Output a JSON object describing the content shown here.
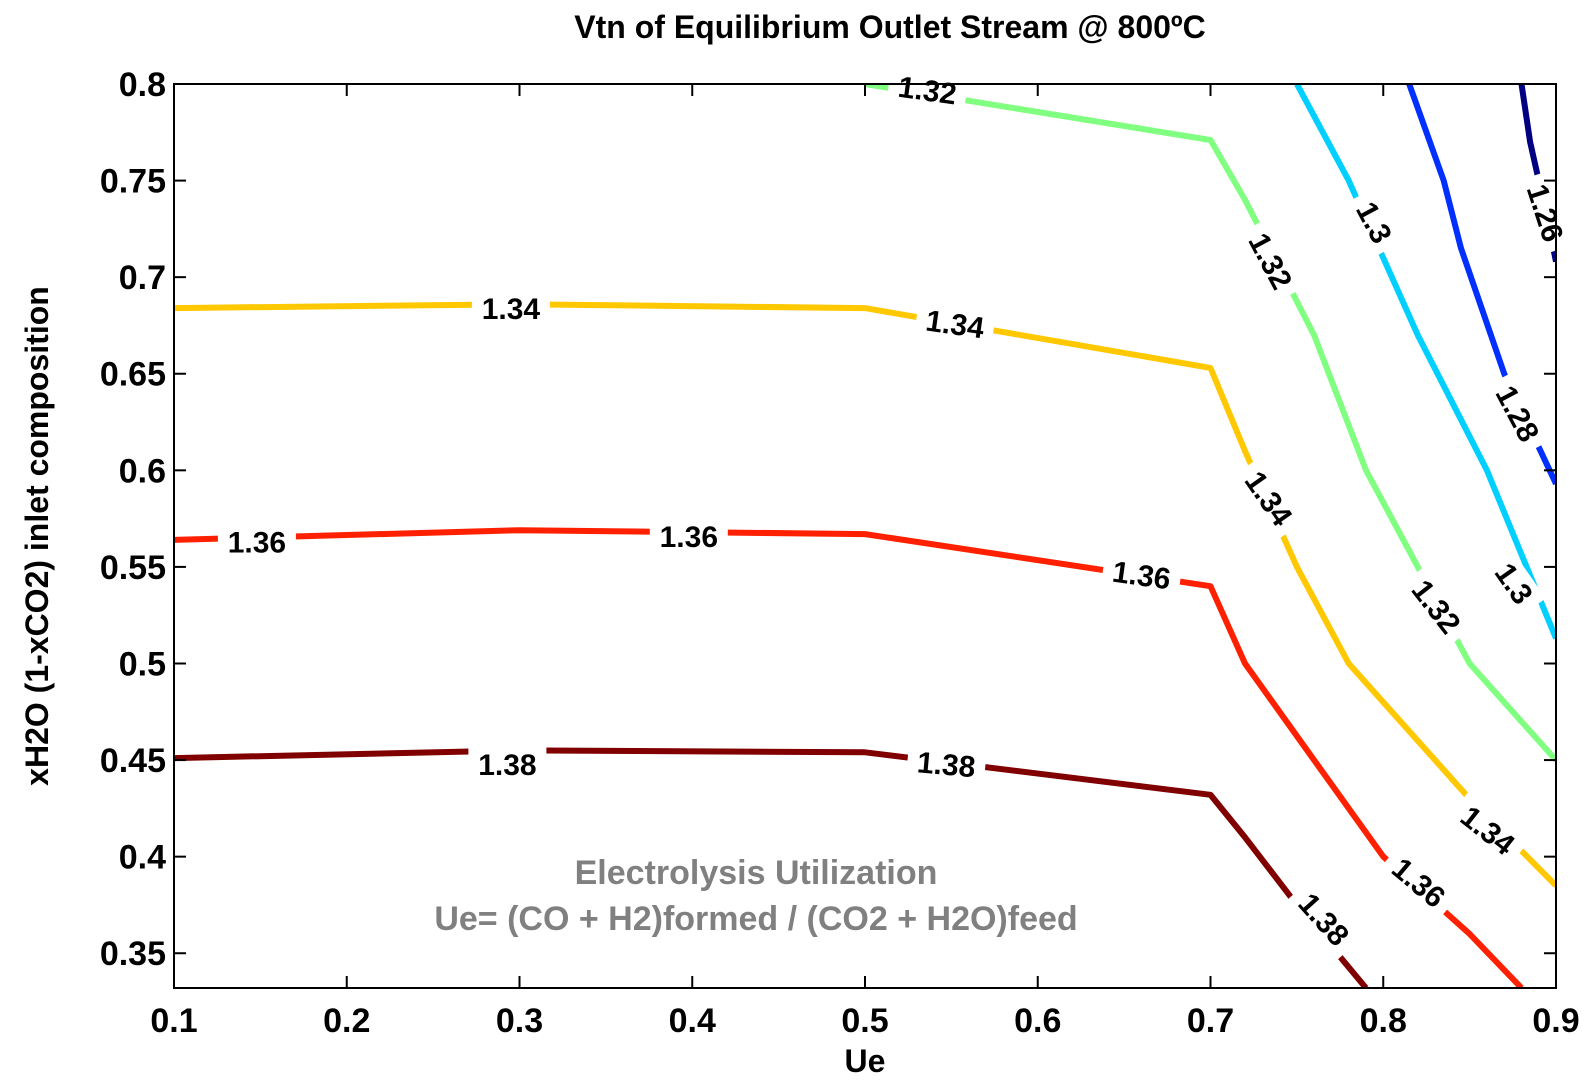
{
  "chart_data": {
    "type": "contour",
    "title": "Vtn of Equilibrium Outlet Stream @ 800ºC",
    "xlabel": "Ue",
    "ylabel": "xH2O (1-xCO2) inlet composition",
    "xlim": [
      0.1,
      0.9
    ],
    "ylim": [
      0.332,
      0.8
    ],
    "x_ticks": [
      "0.1",
      "0.2",
      "0.3",
      "0.4",
      "0.5",
      "0.6",
      "0.7",
      "0.8",
      "0.9"
    ],
    "y_ticks": [
      "0.35",
      "0.4",
      "0.45",
      "0.5",
      "0.55",
      "0.6",
      "0.65",
      "0.7",
      "0.75",
      "0.8"
    ],
    "annotation": [
      "Electrolysis Utilization",
      "Ue= (CO + H2)formed / (CO2 + H2O)feed"
    ],
    "grid": false,
    "series": [
      {
        "level": 1.38,
        "color": "#800000",
        "points": [
          [
            0.1,
            0.451
          ],
          [
            0.3,
            0.455
          ],
          [
            0.5,
            0.454
          ],
          [
            0.7,
            0.432
          ],
          [
            0.72,
            0.41
          ],
          [
            0.75,
            0.375
          ],
          [
            0.79,
            0.332
          ]
        ],
        "labels": [
          {
            "text": "1.38",
            "x": 0.293,
            "y": 0.447,
            "angle": 0
          },
          {
            "text": "1.38",
            "x": 0.547,
            "y": 0.447,
            "angle": 5
          },
          {
            "text": "1.38",
            "x": 0.765,
            "y": 0.367,
            "angle": 48
          }
        ]
      },
      {
        "level": 1.36,
        "color": "#ff2000",
        "points": [
          [
            0.1,
            0.564
          ],
          [
            0.3,
            0.569
          ],
          [
            0.5,
            0.567
          ],
          [
            0.7,
            0.54
          ],
          [
            0.72,
            0.5
          ],
          [
            0.76,
            0.45
          ],
          [
            0.8,
            0.4
          ],
          [
            0.85,
            0.36
          ],
          [
            0.88,
            0.332
          ]
        ],
        "labels": [
          {
            "text": "1.36",
            "x": 0.148,
            "y": 0.562,
            "angle": 0
          },
          {
            "text": "1.36",
            "x": 0.398,
            "y": 0.565,
            "angle": 0
          },
          {
            "text": "1.36",
            "x": 0.66,
            "y": 0.545,
            "angle": 8
          },
          {
            "text": "1.36",
            "x": 0.82,
            "y": 0.386,
            "angle": 40
          }
        ]
      },
      {
        "level": 1.34,
        "color": "#ffc800",
        "points": [
          [
            0.1,
            0.684
          ],
          [
            0.3,
            0.686
          ],
          [
            0.5,
            0.684
          ],
          [
            0.7,
            0.653
          ],
          [
            0.72,
            0.61
          ],
          [
            0.75,
            0.55
          ],
          [
            0.78,
            0.5
          ],
          [
            0.85,
            0.43
          ],
          [
            0.9,
            0.385
          ]
        ],
        "labels": [
          {
            "text": "1.34",
            "x": 0.295,
            "y": 0.683,
            "angle": 0
          },
          {
            "text": "1.34",
            "x": 0.552,
            "y": 0.675,
            "angle": 8
          },
          {
            "text": "1.34",
            "x": 0.733,
            "y": 0.585,
            "angle": 55
          },
          {
            "text": "1.34",
            "x": 0.86,
            "y": 0.413,
            "angle": 38
          }
        ]
      },
      {
        "level": 1.32,
        "color": "#80ff80",
        "points": [
          [
            0.5,
            0.8
          ],
          [
            0.7,
            0.771
          ],
          [
            0.72,
            0.74
          ],
          [
            0.76,
            0.67
          ],
          [
            0.79,
            0.6
          ],
          [
            0.82,
            0.55
          ],
          [
            0.85,
            0.5
          ],
          [
            0.9,
            0.45
          ]
        ],
        "labels": [
          {
            "text": "1.32",
            "x": 0.536,
            "y": 0.796,
            "angle": 8
          },
          {
            "text": "1.32",
            "x": 0.734,
            "y": 0.708,
            "angle": 62
          },
          {
            "text": "1.32",
            "x": 0.83,
            "y": 0.529,
            "angle": 52
          }
        ]
      },
      {
        "level": 1.3,
        "color": "#00d0ff",
        "points": [
          [
            0.75,
            0.8
          ],
          [
            0.78,
            0.75
          ],
          [
            0.82,
            0.67
          ],
          [
            0.86,
            0.6
          ],
          [
            0.9,
            0.513
          ]
        ],
        "labels": [
          {
            "text": "1.3",
            "x": 0.794,
            "y": 0.728,
            "angle": 62
          },
          {
            "text": "1.3",
            "x": 0.875,
            "y": 0.541,
            "angle": 55
          }
        ]
      },
      {
        "level": 1.28,
        "color": "#0030ff",
        "points": [
          [
            0.815,
            0.8
          ],
          [
            0.835,
            0.75
          ],
          [
            0.845,
            0.715
          ],
          [
            0.87,
            0.65
          ],
          [
            0.9,
            0.593
          ]
        ],
        "labels": [
          {
            "text": "1.28",
            "x": 0.877,
            "y": 0.629,
            "angle": 62
          }
        ]
      },
      {
        "level": 1.26,
        "color": "#000080",
        "points": [
          [
            0.88,
            0.8
          ],
          [
            0.885,
            0.77
          ],
          [
            0.895,
            0.73
          ],
          [
            0.9,
            0.708
          ]
        ],
        "labels": [
          {
            "text": "1.26",
            "x": 0.893,
            "y": 0.733,
            "angle": 72
          }
        ]
      }
    ]
  }
}
